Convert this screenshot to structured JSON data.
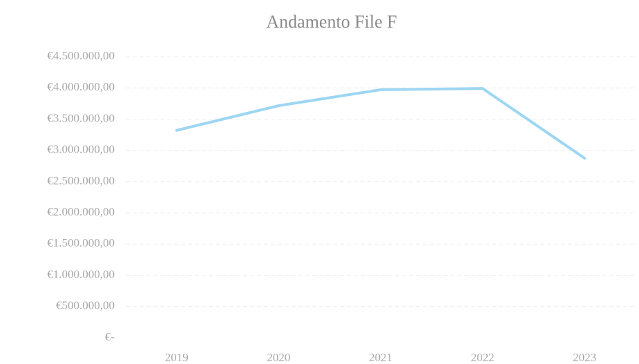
{
  "chart_data": {
    "type": "line",
    "title": "Andamento File F",
    "categories": [
      "2019",
      "2020",
      "2021",
      "2022",
      "2023"
    ],
    "series": [
      {
        "name": "File F",
        "color": "#9dd6f2",
        "values": [
          3320000,
          3715000,
          3970000,
          3990000,
          2875000
        ]
      }
    ],
    "ylim": [
      0,
      4500000
    ],
    "yticks": [
      {
        "value": 0,
        "label": "€-"
      },
      {
        "value": 500000,
        "label": "€500.000,00"
      },
      {
        "value": 1000000,
        "label": "€1.000.000,00"
      },
      {
        "value": 1500000,
        "label": "€1.500.000,00"
      },
      {
        "value": 2000000,
        "label": "€2.000.000,00"
      },
      {
        "value": 2500000,
        "label": "€2.500.000,00"
      },
      {
        "value": 3000000,
        "label": "€3.000.000,00"
      },
      {
        "value": 3500000,
        "label": "€3.500.000,00"
      },
      {
        "value": 4000000,
        "label": "€4.000.000,00"
      },
      {
        "value": 4500000,
        "label": "€4.500.000,00"
      }
    ],
    "grid": true
  }
}
